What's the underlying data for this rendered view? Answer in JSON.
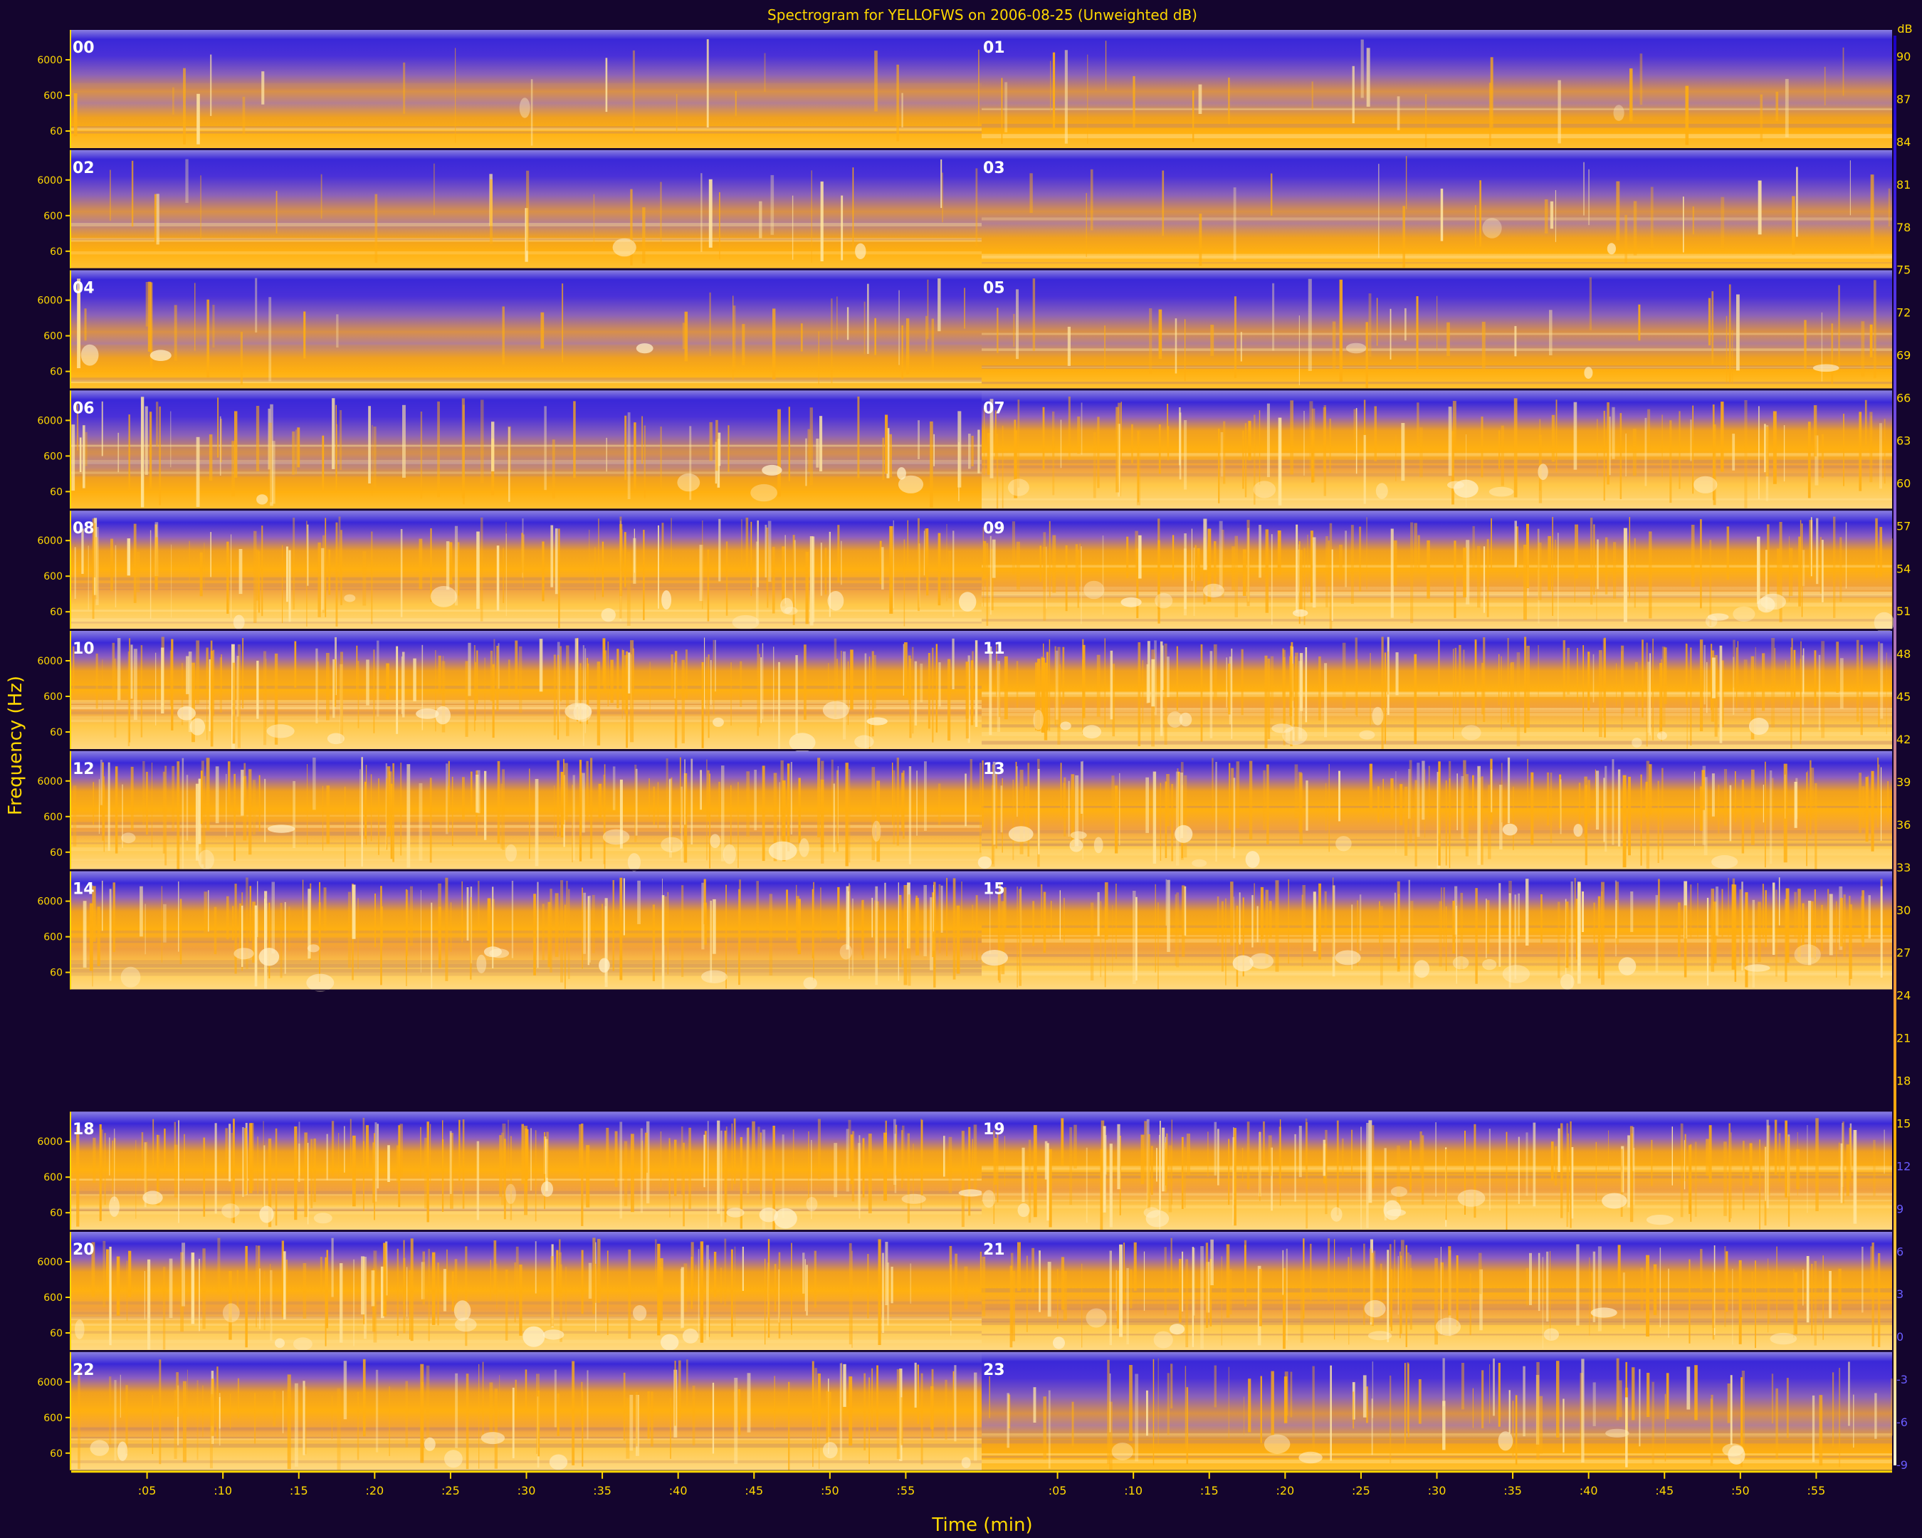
{
  "chart_data": {
    "type": "heatmap",
    "title": "Spectrogram for YELLOFWS on 2006-08-25 (Unweighted dB)",
    "xlabel": "Time (min)",
    "ylabel": "Frequency (Hz)",
    "x_tick_labels": [
      ":05",
      ":10",
      ":15",
      ":20",
      ":25",
      ":30",
      ":35",
      ":40",
      ":45",
      ":50",
      ":55"
    ],
    "y_tick_labels": [
      "6000",
      "600",
      "60"
    ],
    "colorbar": {
      "unit": "dB",
      "ticks": [
        90,
        87,
        84,
        81,
        78,
        75,
        72,
        69,
        66,
        63,
        60,
        57,
        54,
        51,
        48,
        45,
        42,
        39,
        36,
        33,
        30,
        27,
        24,
        21,
        18,
        15,
        12,
        9,
        6,
        3,
        0,
        -3,
        -6,
        -9
      ],
      "gradient": [
        "#1b00c8",
        "#3a1ee0",
        "#5f3ee8",
        "#8a5ed8",
        "#b878b0",
        "#d98a70",
        "#f09a30",
        "#ffae00",
        "#ffcf60",
        "#fff4d8"
      ]
    },
    "rows": [
      {
        "left": "00",
        "right": "01"
      },
      {
        "left": "02",
        "right": "03"
      },
      {
        "left": "04",
        "right": "05"
      },
      {
        "left": "06",
        "right": "07"
      },
      {
        "left": "08",
        "right": "09"
      },
      {
        "left": "10",
        "right": "11"
      },
      {
        "left": "12",
        "right": "13"
      },
      {
        "left": "14",
        "right": "15"
      },
      null,
      {
        "left": "18",
        "right": "19"
      },
      {
        "left": "20",
        "right": "21"
      },
      {
        "left": "22",
        "right": "23"
      }
    ],
    "activity_by_hour": [
      0.05,
      0.1,
      0.12,
      0.12,
      0.18,
      0.2,
      0.45,
      0.6,
      0.7,
      0.75,
      0.9,
      0.9,
      0.85,
      0.85,
      0.85,
      0.85,
      null,
      null,
      0.9,
      0.8,
      0.75,
      0.7,
      0.6,
      0.5
    ],
    "colors": {
      "background": "#14052e",
      "text": "#ffd800",
      "panel_label": "#ffffff",
      "low_level": "#4a2fd0",
      "high_level": "#ffae00"
    }
  }
}
